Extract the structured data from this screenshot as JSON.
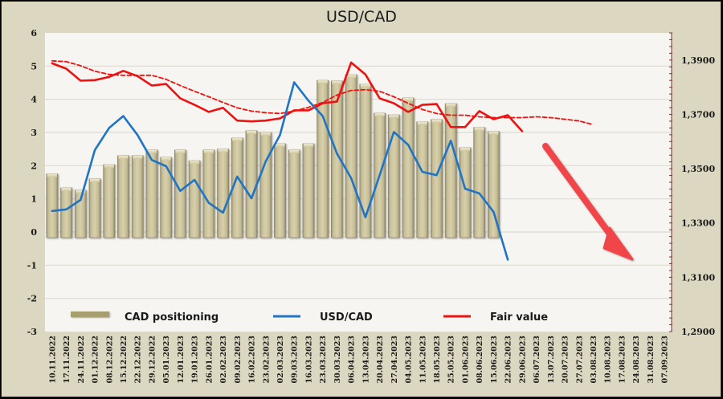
{
  "chart_data": {
    "type": "bar",
    "title": "USD/CAD",
    "xlabel": "",
    "ylabel": "",
    "grid": true,
    "legend_position": "bottom",
    "categories": [
      "10.11.2022",
      "17.11.2022",
      "24.11.2022",
      "01.12.2022",
      "08.12.2022",
      "15.12.2022",
      "22.12.2022",
      "29.12.2022",
      "05.01.2023",
      "12.01.2023",
      "19.01.2023",
      "26.01.2023",
      "02.02.2023",
      "09.02.2023",
      "16.02.2023",
      "23.02.2023",
      "02.03.2023",
      "09.03.2023",
      "16.03.2023",
      "23.03.2023",
      "30.03.2023",
      "06.04.2023",
      "13.04.2023",
      "20.04.2023",
      "27.04.2023",
      "04.05.2023",
      "11.05.2023",
      "18.05.2023",
      "25.05.2023",
      "01.06.2023",
      "08.06.2023",
      "15.06.2023",
      "22.06.2023",
      "29.06.2023",
      "06.07.2023",
      "13.07.2023",
      "20.07.2023",
      "27.07.2023",
      "03.08.2023",
      "10.08.2023",
      "17.08.2023",
      "24.08.2023",
      "31.08.2023",
      "07.09.2023"
    ],
    "left_axis": {
      "ylim": [
        -3,
        6
      ],
      "ticks": [
        "6",
        "5",
        "4",
        "3",
        "2",
        "1",
        "0",
        "-1",
        "-2",
        "-3"
      ]
    },
    "right_axis": {
      "ylim": [
        1.29,
        1.4
      ],
      "ticks": [
        "1,3900",
        "1,3700",
        "1,3500",
        "1,3300",
        "1,3100",
        "1,2900"
      ],
      "tick_values": [
        1.39,
        1.37,
        1.35,
        1.33,
        1.31,
        1.29
      ]
    },
    "series": [
      {
        "name": "CAD positioning",
        "type": "bar",
        "axis": "left",
        "color": "#c9c09a",
        "values": [
          1.75,
          1.33,
          1.26,
          1.6,
          2.03,
          2.3,
          2.3,
          2.47,
          2.25,
          2.47,
          2.15,
          2.47,
          2.5,
          2.83,
          3.05,
          3.0,
          2.66,
          2.47,
          2.66,
          4.57,
          4.55,
          4.74,
          4.45,
          3.58,
          3.53,
          4.04,
          3.32,
          3.39,
          3.87,
          2.54,
          3.15,
          3.03
        ]
      },
      {
        "name": "USD/CAD",
        "type": "line",
        "axis": "right",
        "color": "#1f74c4",
        "values": [
          1.3344,
          1.335,
          1.3385,
          1.3568,
          1.365,
          1.3694,
          1.3624,
          1.3532,
          1.3509,
          1.3418,
          1.3459,
          1.3374,
          1.3338,
          1.3471,
          1.3391,
          1.3527,
          1.3624,
          1.3818,
          1.375,
          1.3694,
          1.3556,
          1.3465,
          1.3321,
          1.3476,
          1.3635,
          1.3588,
          1.3488,
          1.3476,
          1.3603,
          1.3426,
          1.3409,
          1.3341,
          1.3165
        ]
      },
      {
        "name": "Fair value",
        "type": "line",
        "axis": "right",
        "color": "#ee1111",
        "values": [
          1.3888,
          1.3868,
          1.3824,
          1.3826,
          1.3838,
          1.386,
          1.3841,
          1.3806,
          1.3812,
          1.3759,
          1.3735,
          1.3709,
          1.3724,
          1.3677,
          1.3674,
          1.3677,
          1.3685,
          1.3715,
          1.3715,
          1.3741,
          1.3747,
          1.3891,
          1.3847,
          1.3759,
          1.3741,
          1.3709,
          1.3735,
          1.3738,
          1.3653,
          1.3653,
          1.3712,
          1.3682,
          1.3697,
          1.3638
        ]
      },
      {
        "name": "Fair value trend",
        "type": "line",
        "style": "dashed",
        "axis": "right",
        "color": "#ee1111",
        "values": [
          1.3897,
          1.3894,
          1.3879,
          1.3859,
          1.3847,
          1.3844,
          1.3844,
          1.3844,
          1.3829,
          1.3806,
          1.3785,
          1.3765,
          1.3744,
          1.3724,
          1.3712,
          1.3706,
          1.3703,
          1.3712,
          1.3726,
          1.3744,
          1.3771,
          1.3788,
          1.3791,
          1.3785,
          1.3765,
          1.3741,
          1.3718,
          1.3703,
          1.3697,
          1.3697,
          1.3691,
          1.3688,
          1.3688,
          1.3688,
          1.3691,
          1.3688,
          1.3682,
          1.3676,
          1.3662
        ]
      }
    ],
    "annotations": [
      {
        "type": "arrow",
        "direction": "down-right",
        "color": "#f0444a",
        "meaning": "forecast decline"
      }
    ]
  },
  "legend": {
    "items": [
      {
        "label": "CAD positioning",
        "swatch": "bar",
        "color": "#a79f70"
      },
      {
        "label": "USD/CAD",
        "swatch": "line",
        "color": "#1f74c4"
      },
      {
        "label": "Fair value",
        "swatch": "line",
        "color": "#ee1111"
      }
    ]
  }
}
